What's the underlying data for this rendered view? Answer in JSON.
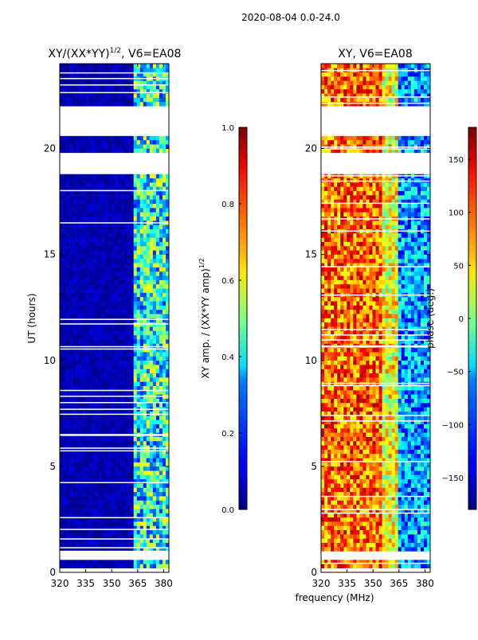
{
  "figure": {
    "suptitle": "2020-08-04 0.0-24.0",
    "shared_xlabel": "frequency (MHz)"
  },
  "chart_data": [
    {
      "type": "heatmap",
      "title": "XY/(XX*YY)",
      "title_exp": "1/2",
      "title_suffix": ", V6=EA08",
      "xlabel": "",
      "ylabel": "UT (hours)",
      "xlim": [
        320,
        383
      ],
      "ylim": [
        0,
        24
      ],
      "xticks": [
        320,
        335,
        350,
        365,
        380
      ],
      "yticks": [
        0,
        5,
        10,
        15,
        20
      ],
      "colorbar": {
        "label": "XY amp. / (XX*YY amp)",
        "label_exp": "1/2",
        "range": [
          0.0,
          1.0
        ],
        "ticks": [
          0.0,
          0.2,
          0.4,
          0.6,
          0.8,
          1.0
        ],
        "tick_labels": [
          "0.0",
          "0.2",
          "0.4",
          "0.6",
          "0.8",
          "1.0"
        ],
        "colormap": "jet"
      },
      "flagged_ut_ranges": [
        [
          0.1,
          0.3
        ],
        [
          0.7,
          0.9
        ],
        [
          20.7,
          22.0
        ],
        [
          18.9,
          19.8
        ]
      ],
      "description_bands": [
        {
          "freq_range": [
            320,
            362
          ],
          "approx_value": 0.05
        },
        {
          "freq_range": [
            362,
            383
          ],
          "approx_value": 0.4
        }
      ]
    },
    {
      "type": "heatmap",
      "title": "XY, V6=EA08",
      "xlabel": "frequency (MHz)",
      "ylabel": "",
      "xlim": [
        320,
        383
      ],
      "ylim": [
        0,
        24
      ],
      "xticks": [
        320,
        335,
        350,
        365,
        380
      ],
      "yticks": [
        0,
        5,
        10,
        15,
        20
      ],
      "colorbar": {
        "label": "phase (deg.)",
        "range": [
          -180,
          180
        ],
        "ticks": [
          -150,
          -100,
          -50,
          0,
          50,
          100,
          150
        ],
        "tick_labels": [
          "−150",
          "−100",
          "−50",
          "0",
          "50",
          "100",
          "150"
        ],
        "colormap": "jet"
      },
      "flagged_ut_ranges": [
        [
          0.1,
          0.3
        ],
        [
          0.7,
          0.9
        ],
        [
          20.7,
          22.0
        ],
        [
          18.9,
          19.8
        ]
      ],
      "description_bands": [
        {
          "freq_range": [
            320,
            355
          ],
          "approx_value": 100
        },
        {
          "freq_range": [
            355,
            365
          ],
          "approx_value": 40
        },
        {
          "freq_range": [
            365,
            383
          ],
          "approx_value": -80
        }
      ]
    }
  ]
}
